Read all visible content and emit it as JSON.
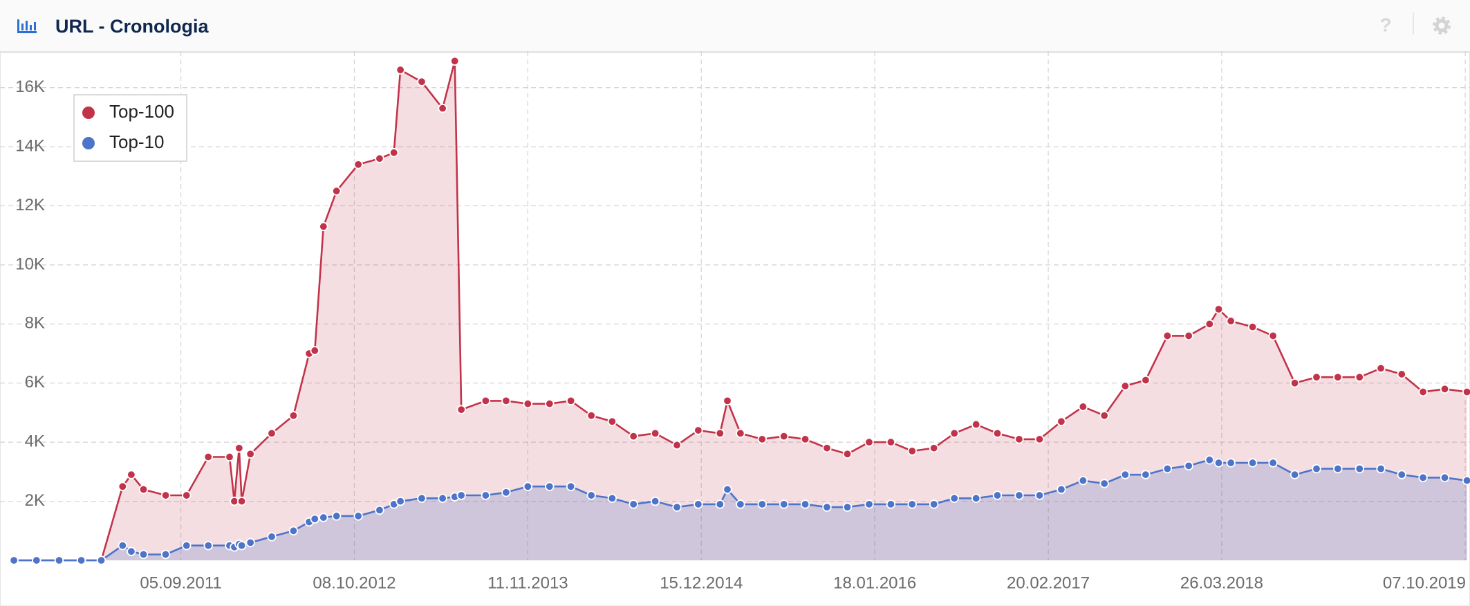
{
  "chart_data": {
    "type": "area",
    "title": "URL - Cronologia",
    "x": [
      "17.08.2010",
      "08.10.2010",
      "29.11.2010",
      "19.01.2011",
      "06.03.2011",
      "24.04.2011",
      "14.05.2011",
      "11.06.2011",
      "01.08.2011",
      "18.09.2011",
      "07.11.2011",
      "26.12.2011",
      "06.01.2012",
      "17.01.2012",
      "23.01.2012",
      "12.02.2012",
      "01.04.2012",
      "21.05.2012",
      "26.06.2012",
      "09.07.2012",
      "29.07.2012",
      "28.08.2012",
      "17.10.2012",
      "05.12.2012",
      "07.01.2013",
      "22.01.2013",
      "12.03.2013",
      "29.04.2013",
      "27.05.2013",
      "11.06.2013",
      "06.08.2013",
      "22.09.2013",
      "11.11.2013",
      "31.12.2013",
      "18.02.2014",
      "06.04.2014",
      "24.05.2014",
      "12.07.2014",
      "31.08.2014",
      "20.10.2014",
      "08.12.2014",
      "27.01.2015",
      "13.02.2015",
      "15.03.2015",
      "04.05.2015",
      "23.06.2015",
      "11.08.2015",
      "30.09.2015",
      "16.11.2015",
      "05.01.2016",
      "24.02.2016",
      "13.04.2016",
      "02.06.2016",
      "19.07.2016",
      "07.09.2016",
      "26.10.2016",
      "15.12.2016",
      "31.01.2017",
      "22.03.2017",
      "11.05.2017",
      "29.06.2017",
      "16.08.2017",
      "02.10.2017",
      "21.11.2017",
      "09.01.2018",
      "26.02.2018",
      "19.03.2018",
      "16.04.2018",
      "05.06.2018",
      "22.07.2018",
      "10.09.2018",
      "30.10.2018",
      "18.12.2018",
      "06.02.2019",
      "27.03.2019",
      "14.05.2019",
      "02.07.2019",
      "21.08.2019",
      "11.10.2019"
    ],
    "series": [
      {
        "name": "Top-100",
        "color": "#c2334a",
        "values": [
          0,
          0,
          0,
          0,
          0,
          2500,
          2900,
          2400,
          2200,
          2200,
          3500,
          3500,
          2000,
          3800,
          2000,
          3600,
          4300,
          4900,
          7000,
          7100,
          11300,
          12500,
          13400,
          13600,
          13800,
          16600,
          16200,
          15300,
          16900,
          5100,
          5400,
          5400,
          5300,
          5300,
          5400,
          4900,
          4700,
          4200,
          4300,
          3900,
          4400,
          4300,
          5400,
          4300,
          4100,
          4200,
          4100,
          3800,
          3600,
          4000,
          4000,
          3700,
          3800,
          4300,
          4600,
          4300,
          4100,
          4100,
          4700,
          5200,
          4900,
          5900,
          6100,
          7600,
          7600,
          8000,
          8500,
          8100,
          7900,
          7600,
          6000,
          6200,
          6200,
          6200,
          6500,
          6300,
          5700,
          5800,
          5700
        ]
      },
      {
        "name": "Top-10",
        "color": "#4d74c8",
        "values": [
          0,
          0,
          0,
          0,
          0,
          500,
          300,
          200,
          200,
          500,
          500,
          500,
          450,
          550,
          500,
          600,
          800,
          1000,
          1300,
          1400,
          1450,
          1500,
          1500,
          1700,
          1900,
          2000,
          2100,
          2100,
          2150,
          2200,
          2200,
          2300,
          2500,
          2500,
          2500,
          2200,
          2100,
          1900,
          2000,
          1800,
          1900,
          1900,
          2400,
          1900,
          1900,
          1900,
          1900,
          1800,
          1800,
          1900,
          1900,
          1900,
          1900,
          2100,
          2100,
          2200,
          2200,
          2200,
          2400,
          2700,
          2600,
          2900,
          2900,
          3100,
          3200,
          3400,
          3300,
          3300,
          3300,
          3300,
          2900,
          3100,
          3100,
          3100,
          3100,
          2900,
          2800,
          2800,
          2700
        ]
      }
    ],
    "xlim": [
      "16.07.2010",
      "18.10.2019"
    ],
    "xticks": [
      "05.09.2011",
      "08.10.2012",
      "11.11.2013",
      "15.12.2014",
      "18.01.2016",
      "20.02.2017",
      "26.03.2018",
      "07.10.2019"
    ],
    "ylim": [
      0,
      17000
    ],
    "yticks": [
      {
        "value": 2000,
        "label": "2K"
      },
      {
        "value": 4000,
        "label": "4K"
      },
      {
        "value": 6000,
        "label": "6K"
      },
      {
        "value": 8000,
        "label": "8K"
      },
      {
        "value": 10000,
        "label": "10K"
      },
      {
        "value": 12000,
        "label": "12K"
      },
      {
        "value": 14000,
        "label": "14K"
      },
      {
        "value": 16000,
        "label": "16K"
      }
    ],
    "grid": true,
    "legend": "top-left"
  }
}
